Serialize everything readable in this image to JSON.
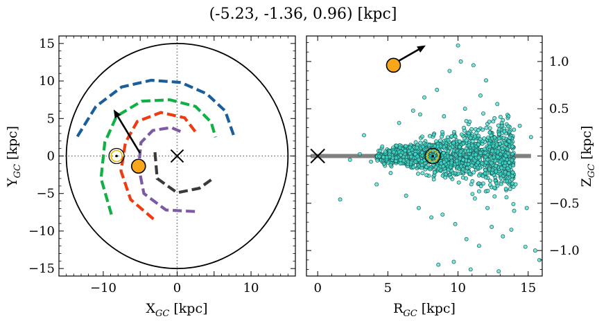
{
  "figure": {
    "title": "(-5.23, -1.36, 0.96) [kpc]"
  },
  "chart_data": [
    {
      "type": "scatter",
      "panel": "left",
      "xlabel": "X",
      "xlabel_sub": "GC",
      "xlabel_unit": " [kpc]",
      "ylabel": "Y",
      "ylabel_sub": "GC",
      "ylabel_unit": " [kpc]",
      "xlim": [
        -16,
        16
      ],
      "ylim": [
        -16,
        16
      ],
      "xticks": [
        -10,
        -5,
        0,
        5,
        10
      ],
      "xtick_labels": [
        "−10",
        "",
        "0",
        "",
        "10"
      ],
      "yticks": [
        -15,
        -10,
        -5,
        0,
        5,
        10,
        15
      ],
      "ytick_labels": [
        "−15",
        "−10",
        "−5",
        "0",
        "5",
        "10",
        "15"
      ],
      "grid": false,
      "galactic_center": [
        0,
        0
      ],
      "sun_position": [
        -8.2,
        0
      ],
      "object_position": [
        -5.23,
        -1.36
      ],
      "arrow": {
        "from": [
          -8.6,
          0.4
        ],
        "to": [
          -8.6,
          6.2
        ]
      },
      "outer_boundary_radius": 15,
      "reference_lines": {
        "x": 0,
        "y": 0,
        "style": "dotted"
      },
      "arms": [
        {
          "color": "#1a5e9a",
          "points": [
            [
              -13.5,
              2.6
            ],
            [
              -11,
              6.6
            ],
            [
              -7.5,
              9.2
            ],
            [
              -3.5,
              10.1
            ],
            [
              0.5,
              9.8
            ],
            [
              4,
              8.3
            ],
            [
              6.5,
              6
            ],
            [
              7.7,
              2.6
            ]
          ]
        },
        {
          "color": "#11b045",
          "points": [
            [
              -8.9,
              -7.8
            ],
            [
              -10.3,
              -3
            ],
            [
              -9.8,
              1.8
            ],
            [
              -8.2,
              5.3
            ],
            [
              -4.8,
              7.3
            ],
            [
              -1,
              7.5
            ],
            [
              2.5,
              6.6
            ],
            [
              4.6,
              4.5
            ],
            [
              5.2,
              2.5
            ]
          ]
        },
        {
          "color": "#f03a10",
          "points": [
            [
              -3.2,
              -8.4
            ],
            [
              -6.3,
              -5.8
            ],
            [
              -7.6,
              -2
            ],
            [
              -7,
              1.8
            ],
            [
              -5.4,
              4.6
            ],
            [
              -2.2,
              5.8
            ],
            [
              1,
              5.1
            ],
            [
              2.5,
              3.2
            ]
          ]
        },
        {
          "color": "#7b5aa3",
          "points": [
            [
              2.4,
              -7.4
            ],
            [
              -1.5,
              -7.2
            ],
            [
              -4.5,
              -5
            ],
            [
              -5.2,
              -1.5
            ],
            [
              -4.9,
              1.8
            ],
            [
              -3.3,
              3.4
            ],
            [
              -0.8,
              3.8
            ],
            [
              0.6,
              3.2
            ]
          ]
        },
        {
          "color": "#3a3a3a",
          "points": [
            [
              -3,
              0.5
            ],
            [
              -2.7,
              -3
            ],
            [
              0,
              -4.9
            ],
            [
              3,
              -4.3
            ],
            [
              4.7,
              -3.1
            ]
          ]
        }
      ]
    },
    {
      "type": "scatter",
      "panel": "right",
      "xlabel": "R",
      "xlabel_sub": "GC",
      "xlabel_unit": " [kpc]",
      "ylabel": "Z",
      "ylabel_sub": "GC",
      "ylabel_unit": " [kpc]",
      "ylabel_position": "right",
      "xlim": [
        -0.8,
        16
      ],
      "ylim": [
        -1.27,
        1.27
      ],
      "xticks": [
        0,
        5,
        10,
        15
      ],
      "xtick_labels": [
        "0",
        "5",
        "10",
        "15"
      ],
      "yticks": [
        1.0,
        0.5,
        0.0,
        -0.5,
        -1.0
      ],
      "ytick_labels": [
        "1.0",
        "0.5",
        "0.0",
        "−0.5",
        "−1.0"
      ],
      "grid": false,
      "disk_line": {
        "x": [
          -0.5,
          15.2
        ],
        "y": 0
      },
      "galactic_center": [
        0,
        0
      ],
      "sun_position": [
        8.2,
        0
      ],
      "object_position": [
        5.4,
        0.96
      ],
      "arrow": {
        "from": [
          5.7,
          1.0
        ],
        "to": [
          7.7,
          1.17
        ]
      },
      "point_color": "#40e0d0",
      "points": [
        [
          1.6,
          -0.46
        ],
        [
          2.3,
          -0.04
        ],
        [
          3.3,
          0.22
        ],
        [
          4.2,
          -0.3
        ],
        [
          3.8,
          -0.06
        ],
        [
          3.0,
          0.02
        ],
        [
          4.6,
          0.1
        ],
        [
          5.2,
          -0.18
        ],
        [
          5.8,
          0.35
        ],
        [
          6.3,
          -0.42
        ],
        [
          6.8,
          0.48
        ],
        [
          7.2,
          -0.55
        ],
        [
          7.6,
          0.62
        ],
        [
          8.1,
          -0.65
        ],
        [
          8.5,
          0.7
        ],
        [
          8.9,
          -0.62
        ],
        [
          9.4,
          0.9
        ],
        [
          9.8,
          -0.72
        ],
        [
          10.2,
          1.0
        ],
        [
          10.6,
          -0.88
        ],
        [
          11.1,
          0.96
        ],
        [
          11.5,
          -0.95
        ],
        [
          12.0,
          0.8
        ],
        [
          12.4,
          -0.75
        ],
        [
          12.8,
          0.55
        ],
        [
          13.2,
          -0.85
        ],
        [
          13.6,
          0.42
        ],
        [
          14.0,
          -0.58
        ],
        [
          14.4,
          0.32
        ],
        [
          14.8,
          -0.96
        ],
        [
          15.2,
          0.2
        ],
        [
          15.5,
          -1.0
        ],
        [
          15.8,
          -1.1
        ],
        [
          10.0,
          1.17
        ],
        [
          9.0,
          0.42
        ],
        [
          10.5,
          0.5
        ],
        [
          11.8,
          0.45
        ],
        [
          12.6,
          0.4
        ],
        [
          13.3,
          0.26
        ],
        [
          14.1,
          -0.3
        ],
        [
          14.9,
          -0.55
        ],
        [
          13.8,
          -0.78
        ],
        [
          12.1,
          -0.55
        ],
        [
          11.2,
          -0.45
        ],
        [
          9.7,
          -1.12
        ],
        [
          10.9,
          -1.2
        ],
        [
          12.9,
          -1.22
        ],
        [
          8.6,
          -1.15
        ],
        [
          11.6,
          0.64
        ],
        [
          7.3,
          0.44
        ]
      ]
    }
  ]
}
